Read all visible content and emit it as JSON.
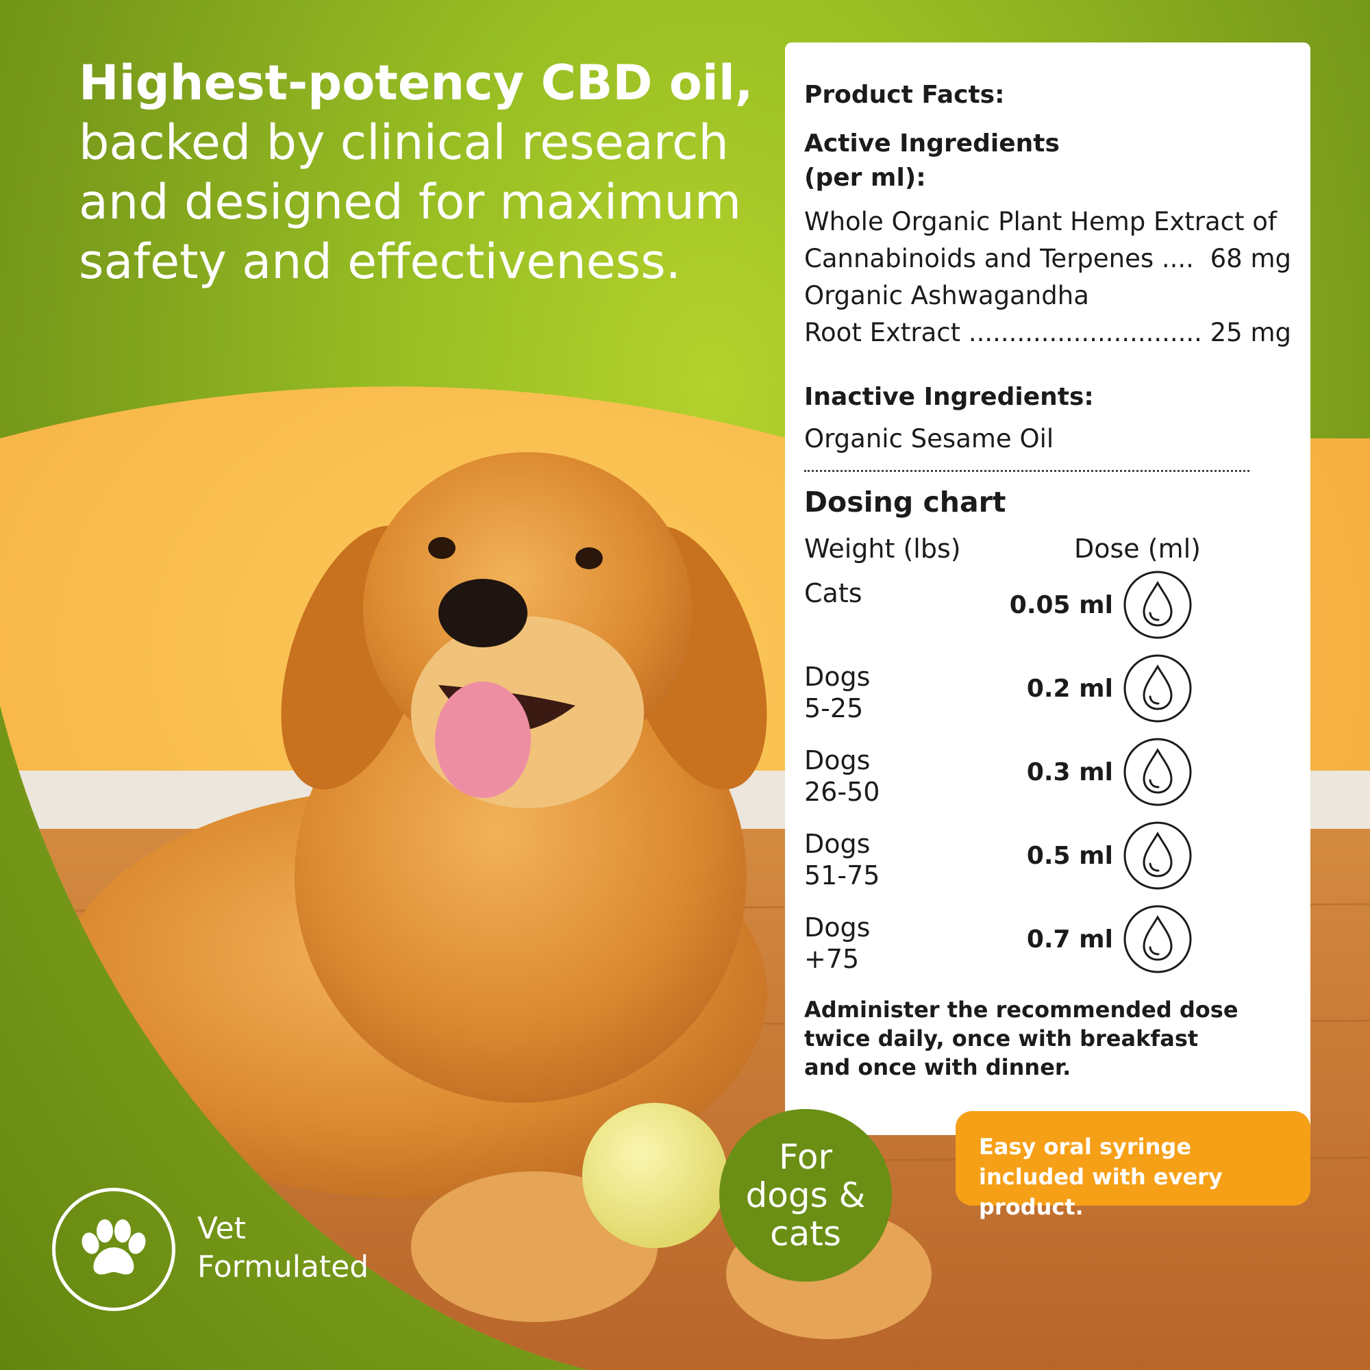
{
  "colors": {
    "green_light": "#b4d12c",
    "green_dark": "#6a8f14",
    "orange": "#f6a018",
    "wall": "#f8b946",
    "floor": "#c9772f",
    "dog_fur": "#d9832a"
  },
  "headline": {
    "bold": "Highest-potency CBD oil,",
    "rest": "backed by clinical research and designed for maximum safety and effectiveness."
  },
  "facts": {
    "title": "Product Facts:",
    "active_title": "Active Ingredients (per ml):",
    "active": [
      {
        "line1": "Whole Organic Plant Hemp Extract of",
        "line2": "Cannabinoids and Terpenes ....",
        "amount": "68 mg"
      },
      {
        "line1": "Organic Ashwagandha",
        "line2": "Root Extract",
        "amount": "25 mg"
      }
    ],
    "inactive_title": "Inactive Ingredients:",
    "inactive": "Organic Sesame Oil"
  },
  "dosing": {
    "title": "Dosing chart",
    "col_weight": "Weight (lbs)",
    "col_dose": "Dose (ml)",
    "rows": [
      {
        "weight": "Cats",
        "dose": "0.05 ml"
      },
      {
        "weight": "Dogs\n5-25",
        "dose": "0.2 ml"
      },
      {
        "weight": "Dogs\n26-50",
        "dose": "0.3 ml"
      },
      {
        "weight": "Dogs\n51-75",
        "dose": "0.5 ml"
      },
      {
        "weight": "Dogs\n+75",
        "dose": "0.7 ml"
      }
    ],
    "icon": "droplet-icon",
    "note": "Administer the recommended dose twice daily, once with breakfast and once with dinner."
  },
  "syringe_note": "Easy oral syringe included with every product.",
  "badge": {
    "line1": "For",
    "line2": "dogs &",
    "line3": "cats"
  },
  "vet": {
    "icon": "paw-icon",
    "line1": "Vet",
    "line2": "Formulated"
  },
  "photo": {
    "subject": "golden-retriever-photo",
    "ball": "tennis-ball"
  }
}
